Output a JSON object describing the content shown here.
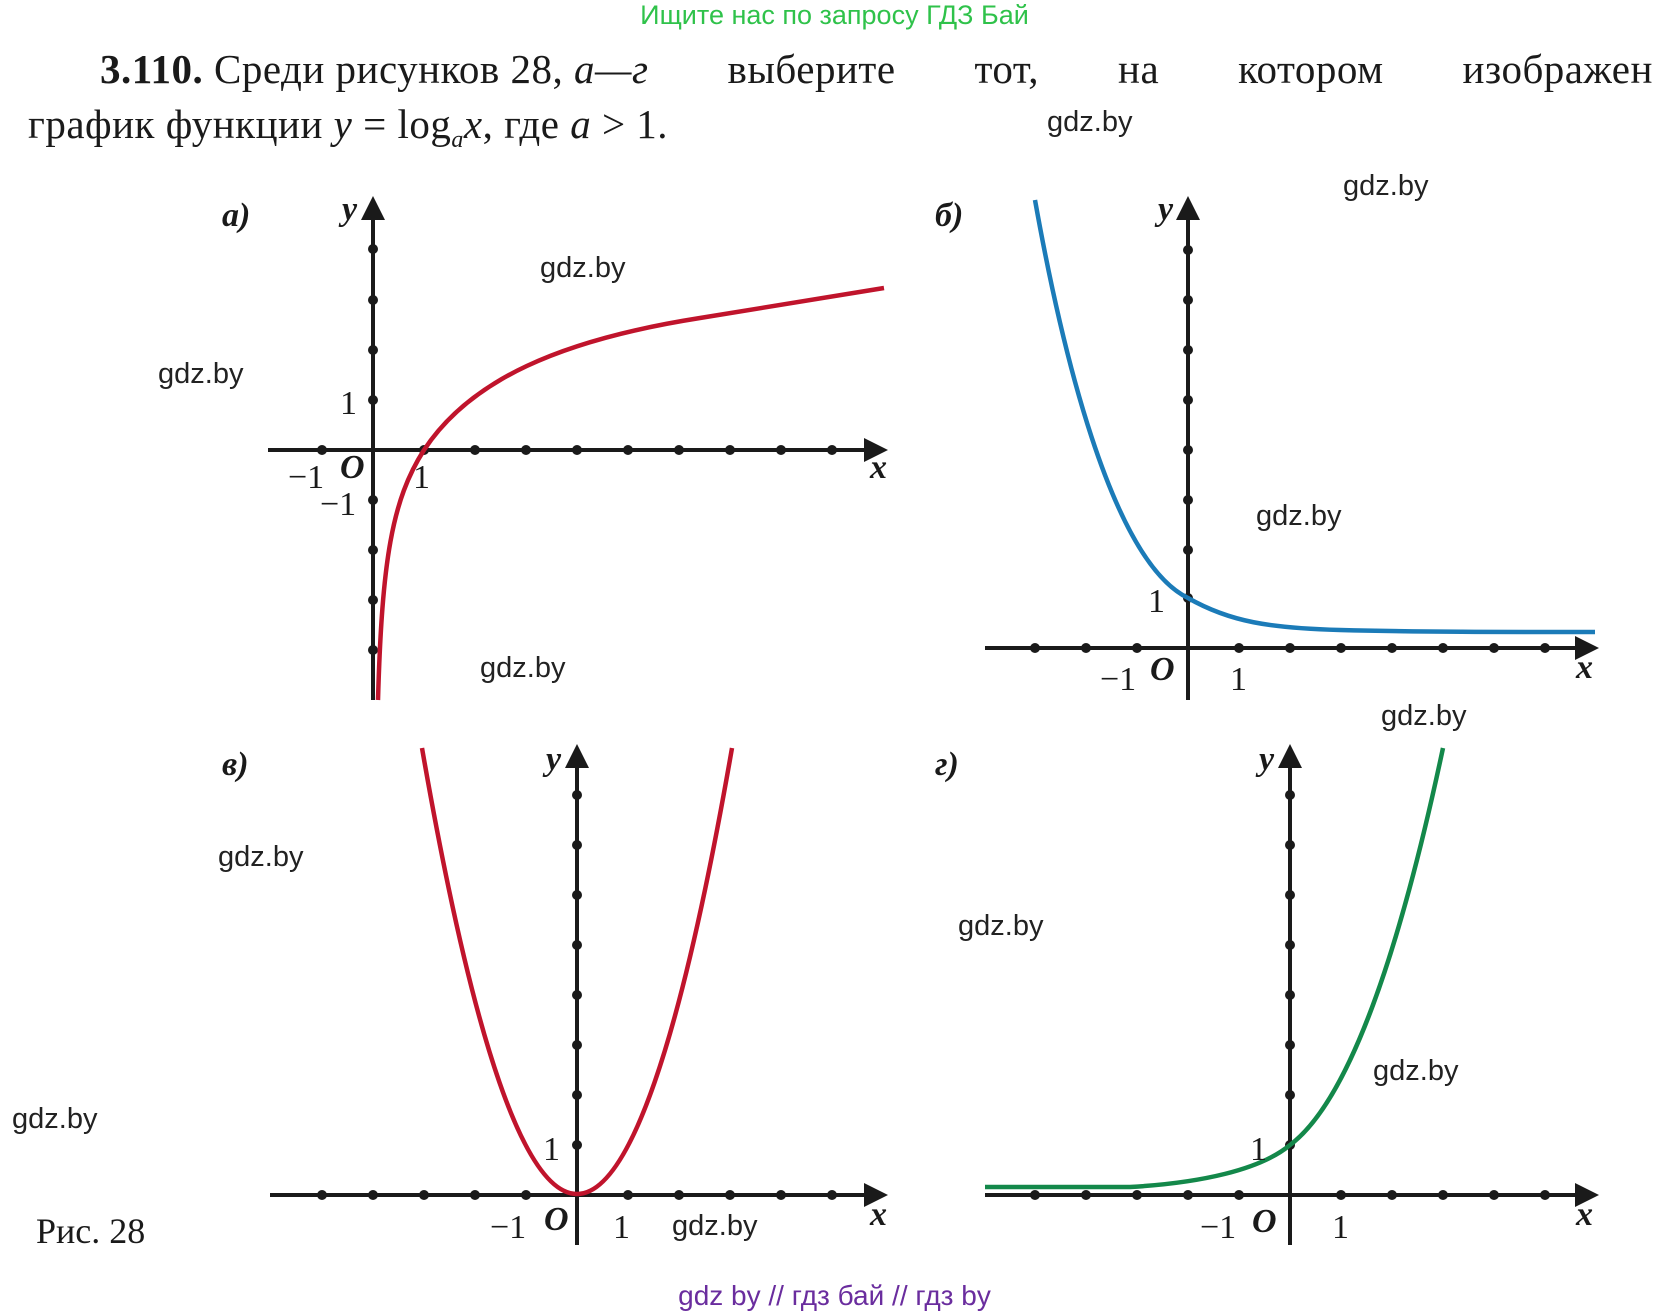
{
  "header": {
    "link_text": "Ищите нас по запросу ГДЗ Бай"
  },
  "problem": {
    "number": "3.110.",
    "line1_text": "Среди рисунков 28,",
    "letters": "а—г",
    "line1_rest": [
      "выберите",
      "тот,",
      "на",
      "котором",
      "изображен"
    ],
    "line2_start": "график функции",
    "func_y": "y",
    "func_eq": "= log",
    "func_base": "a",
    "func_x": "x",
    "line2_mid": ", где",
    "cond_a": "a",
    "cond_rest": "> 1."
  },
  "watermarks": [
    "gdz.by",
    "gdz.by",
    "gdz.by",
    "gdz.by",
    "gdz.by",
    "gdz.by",
    "gdz.by",
    "gdz.by",
    "gdz.by",
    "gdz.by",
    "gdz.by",
    "gdz.by"
  ],
  "panels": {
    "a": {
      "label": "а)",
      "axis_x": "x",
      "axis_y": "y",
      "origin": "O",
      "tick_one": "1",
      "tick_minus_one": "−1",
      "curve_color": "#c0142c"
    },
    "b": {
      "label": "б)",
      "axis_x": "x",
      "axis_y": "y",
      "origin": "O",
      "tick_one": "1",
      "tick_minus_one": "−1",
      "curve_color": "#1b7bb8"
    },
    "v": {
      "label": "в)",
      "axis_x": "x",
      "axis_y": "y",
      "origin": "O",
      "tick_one": "1",
      "tick_minus_one": "−1",
      "curve_color": "#c0142c"
    },
    "g": {
      "label": "г)",
      "axis_x": "x",
      "axis_y": "y",
      "origin": "O",
      "tick_one": "1",
      "tick_minus_one": "−1",
      "curve_color": "#13884a"
    }
  },
  "caption": "Рис. 28",
  "footer": {
    "link_text": "gdz by  //  гдз бай  //  гдз by"
  }
}
